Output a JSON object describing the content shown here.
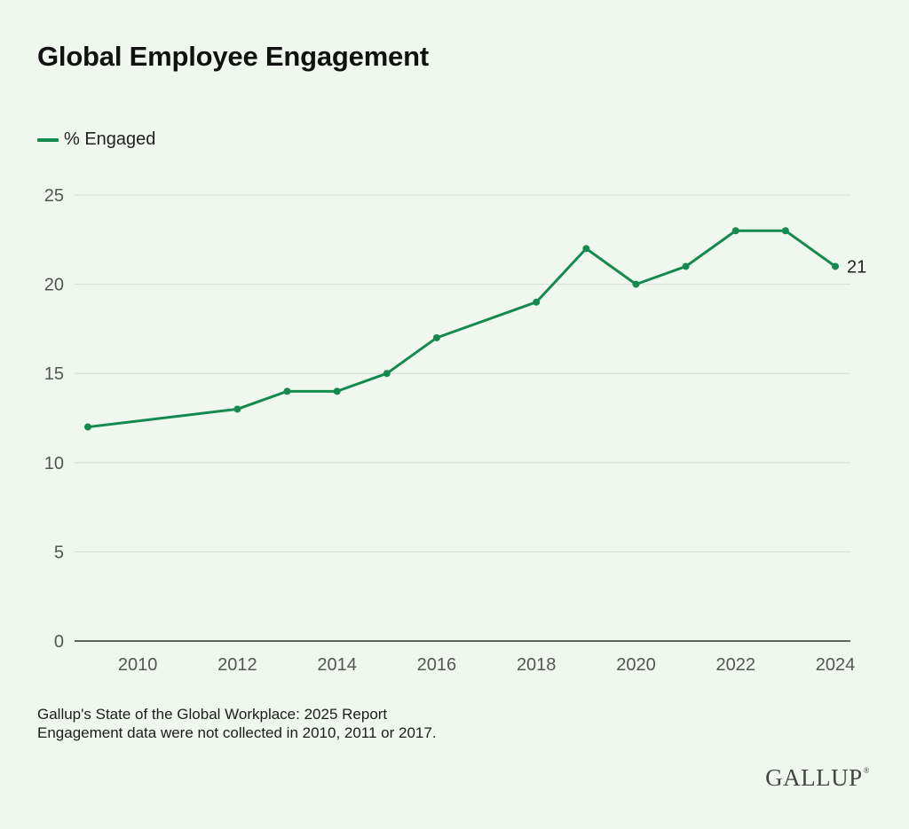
{
  "chart_data": {
    "type": "line",
    "title": "Global Employee Engagement",
    "legend_position": "top-left",
    "grid": true,
    "ylim": [
      0,
      25
    ],
    "yticks": [
      0,
      5,
      10,
      15,
      20,
      25
    ],
    "xlim": [
      2009,
      2024
    ],
    "xticks": [
      2010,
      2012,
      2014,
      2016,
      2018,
      2020,
      2022,
      2024
    ],
    "series": [
      {
        "name": "% Engaged",
        "color": "#158a4e",
        "points": [
          {
            "x": 2009,
            "y": 12
          },
          {
            "x": 2012,
            "y": 13
          },
          {
            "x": 2013,
            "y": 14
          },
          {
            "x": 2014,
            "y": 14
          },
          {
            "x": 2015,
            "y": 15
          },
          {
            "x": 2016,
            "y": 17
          },
          {
            "x": 2018,
            "y": 19
          },
          {
            "x": 2019,
            "y": 22
          },
          {
            "x": 2020,
            "y": 20
          },
          {
            "x": 2021,
            "y": 21
          },
          {
            "x": 2022,
            "y": 23
          },
          {
            "x": 2023,
            "y": 23
          },
          {
            "x": 2024,
            "y": 21
          }
        ],
        "end_label": "21"
      }
    ]
  },
  "footnotes": [
    "Gallup's State of the Global Workplace: 2025 Report",
    "Engagement data were not collected in 2010, 2011 or 2017."
  ],
  "brand": {
    "name": "GALLUP",
    "mark": "®"
  },
  "colors": {
    "background": "#f0f7ef",
    "series": "#158a4e",
    "grid": "#d5dcd5",
    "axis": "#333333",
    "tick_text": "#555555"
  }
}
